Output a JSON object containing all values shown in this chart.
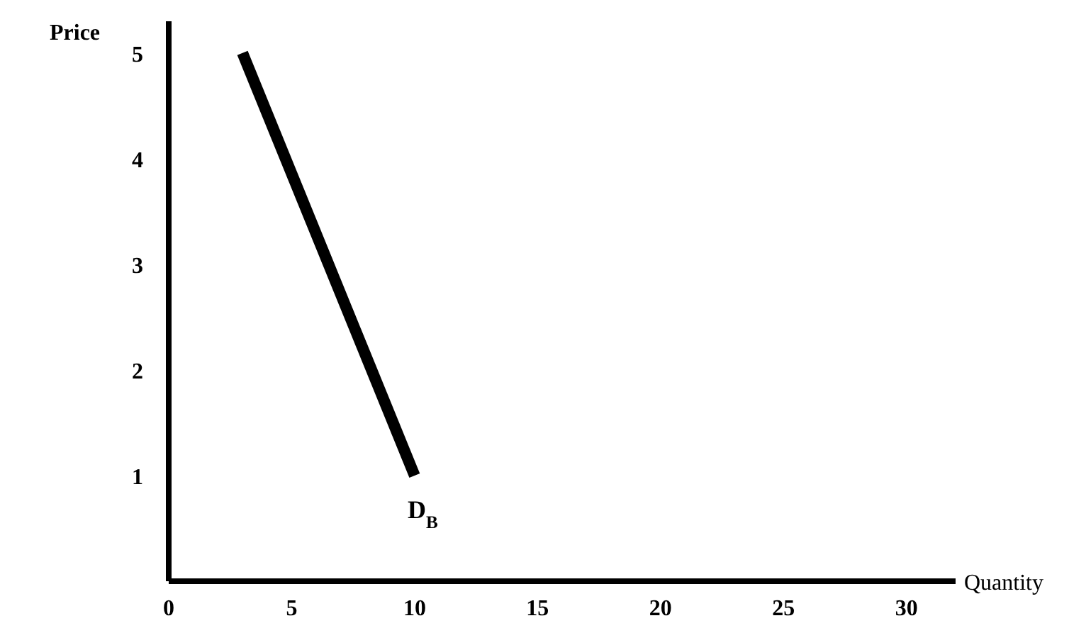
{
  "chart_data": {
    "type": "line",
    "xlabel": "Quantity",
    "ylabel": "Price",
    "x": [
      3,
      10
    ],
    "series": [
      {
        "color": "#000000",
        "values": [
          5,
          1
        ]
      }
    ],
    "xlim": [
      0,
      32
    ],
    "ylim": [
      0,
      5.3
    ],
    "xticks": [
      0,
      5,
      10,
      15,
      20,
      25,
      30
    ],
    "yticks": [
      1,
      2,
      3,
      4,
      5
    ],
    "annotations": [
      {
        "text": "D$_{B}$",
        "x": 10,
        "y": 1
      }
    ],
    "grid": false,
    "marker": "none",
    "line_style": "solid"
  }
}
